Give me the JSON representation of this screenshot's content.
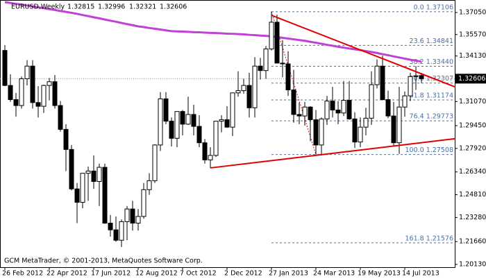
{
  "chart_data": {
    "type": "candlestick",
    "symbol": "EURUSD,Weekly",
    "footer": "GCM MetaTrader, © 2001-2013, MetaQuotes Software Corp.",
    "categories": [
      "26 Feb 2012",
      null,
      null,
      null,
      null,
      null,
      null,
      null,
      "22 Apr 2012",
      null,
      null,
      null,
      null,
      null,
      null,
      null,
      "17 Jun 2012",
      null,
      null,
      null,
      null,
      null,
      null,
      null,
      "12 Aug 2012",
      null,
      null,
      null,
      null,
      null,
      null,
      null,
      "7 Oct 2012",
      null,
      null,
      null,
      null,
      null,
      null,
      null,
      "2 Dec 2012",
      null,
      null,
      null,
      null,
      null,
      null,
      null,
      "27 Jan 2013",
      null,
      null,
      null,
      null,
      null,
      null,
      null,
      "24 Mar 2013",
      null,
      null,
      null,
      null,
      null,
      null,
      null,
      "19 May 2013",
      null,
      null,
      null,
      null,
      null,
      null,
      null,
      "14 Jul 2013",
      null,
      null,
      null
    ],
    "open": [
      1.345,
      1.3215,
      1.312,
      1.308,
      1.326,
      1.3345,
      1.31,
      1.3075,
      1.3215,
      1.324,
      1.308,
      1.292,
      1.2785,
      1.252,
      1.243,
      1.2625,
      1.264,
      1.257,
      1.2665,
      1.229,
      1.2245,
      1.2175,
      1.23,
      1.2385,
      1.229,
      1.2335,
      1.2515,
      1.2575,
      1.2815,
      1.3125,
      1.2975,
      1.286,
      1.304,
      1.2955,
      1.302,
      1.294,
      1.283,
      1.2715,
      1.2745,
      1.2975,
      1.2985,
      1.2935,
      1.3165,
      1.318,
      1.3215,
      1.3065,
      1.3345,
      1.3315,
      1.346,
      1.364,
      1.3365,
      1.336,
      1.3185,
      1.302,
      1.301,
      1.307,
      1.2985,
      1.2815,
      1.299,
      1.311,
      1.305,
      1.303,
      1.3115,
      1.299,
      1.2835,
      1.2935,
      1.2995,
      1.322,
      1.3345,
      1.312,
      1.301,
      1.283,
      1.307,
      1.3145,
      1.3275,
      1.32815
    ],
    "high": [
      1.3486,
      1.329,
      1.3165,
      1.3275,
      1.3385,
      1.3385,
      1.321,
      1.322,
      1.3265,
      1.3285,
      1.311,
      1.2955,
      1.2815,
      1.256,
      1.2625,
      1.267,
      1.2745,
      1.269,
      1.269,
      1.2345,
      1.2335,
      1.2315,
      1.2405,
      1.244,
      1.2385,
      1.256,
      1.2625,
      1.282,
      1.317,
      1.317,
      1.3,
      1.304,
      1.305,
      1.314,
      1.3085,
      1.3015,
      1.2855,
      1.28,
      1.2975,
      1.3015,
      1.3075,
      1.3165,
      1.331,
      1.326,
      1.33,
      1.3405,
      1.34,
      1.348,
      1.3711,
      1.369,
      1.352,
      1.3445,
      1.332,
      1.31,
      1.3105,
      1.3075,
      1.305,
      1.3,
      1.3145,
      1.3205,
      1.311,
      1.3245,
      1.3245,
      1.3035,
      1.3,
      1.3065,
      1.331,
      1.339,
      1.3415,
      1.318,
      1.3105,
      1.3205,
      1.3175,
      1.33,
      1.3345,
      1.32996
    ],
    "low": [
      1.321,
      1.3105,
      1.3005,
      1.306,
      1.3215,
      1.306,
      1.3,
      1.303,
      1.3115,
      1.306,
      1.2905,
      1.264,
      1.251,
      1.229,
      1.239,
      1.244,
      1.252,
      1.2405,
      1.2285,
      1.22,
      1.2165,
      1.213,
      1.2175,
      1.224,
      1.224,
      1.232,
      1.248,
      1.256,
      1.2775,
      1.2955,
      1.2805,
      1.28,
      1.288,
      1.295,
      1.288,
      1.28,
      1.269,
      1.266,
      1.2735,
      1.29,
      1.293,
      1.2875,
      1.314,
      1.316,
      1.3,
      1.3,
      1.3255,
      1.326,
      1.345,
      1.3375,
      1.327,
      1.3145,
      1.2965,
      1.2955,
      1.2945,
      1.284,
      1.2751,
      1.2745,
      1.295,
      1.3,
      1.2955,
      1.301,
      1.2985,
      1.2795,
      1.28,
      1.288,
      1.295,
      1.3195,
      1.3115,
      1.2995,
      1.2805,
      1.2755,
      1.3005,
      1.311,
      1.3185,
      1.32321
    ],
    "close": [
      1.3215,
      1.312,
      1.308,
      1.326,
      1.3345,
      1.31,
      1.3075,
      1.3215,
      1.324,
      1.308,
      1.292,
      1.2785,
      1.252,
      1.243,
      1.2625,
      1.264,
      1.257,
      1.2665,
      1.229,
      1.2245,
      1.2175,
      1.23,
      1.2385,
      1.229,
      1.2335,
      1.2515,
      1.2575,
      1.2815,
      1.3125,
      1.2975,
      1.286,
      1.304,
      1.2955,
      1.302,
      1.294,
      1.283,
      1.2715,
      1.2745,
      1.2975,
      1.2985,
      1.2935,
      1.3165,
      1.318,
      1.3215,
      1.3065,
      1.3345,
      1.3315,
      1.346,
      1.364,
      1.3365,
      1.336,
      1.3185,
      1.302,
      1.301,
      1.307,
      1.2985,
      1.2815,
      1.299,
      1.311,
      1.305,
      1.303,
      1.3115,
      1.299,
      1.2835,
      1.2935,
      1.2995,
      1.322,
      1.3345,
      1.312,
      1.301,
      1.283,
      1.307,
      1.3145,
      1.3275,
      1.328,
      1.32606
    ],
    "bull_color": "#ffffff",
    "bear_color": "#000000",
    "moving_average": {
      "color": "#c040d8",
      "values": [
        1.3775,
        1.3769,
        1.3763,
        1.3758,
        1.3752,
        1.3746,
        1.374,
        1.3734,
        1.3728,
        1.3722,
        1.3715,
        1.3709,
        1.3703,
        1.3696,
        1.3688,
        1.3681,
        1.3673,
        1.3666,
        1.3658,
        1.365,
        1.3643,
        1.3635,
        1.3627,
        1.362,
        1.3612,
        1.3607,
        1.3601,
        1.3596,
        1.3591,
        1.3585,
        1.358,
        1.3578,
        1.3577,
        1.3575,
        1.3573,
        1.3572,
        1.357,
        1.3568,
        1.3567,
        1.3565,
        1.3563,
        1.3562,
        1.356,
        1.3558,
        1.3555,
        1.3553,
        1.355,
        1.3548,
        1.3545,
        1.354,
        1.3535,
        1.353,
        1.3525,
        1.352,
        1.3515,
        1.3508,
        1.3502,
        1.3495,
        1.3488,
        1.3482,
        1.3475,
        1.3469,
        1.3463,
        1.3458,
        1.3452,
        1.3446,
        1.344,
        1.3433,
        1.3425,
        1.3418,
        1.341,
        1.3403,
        1.3395,
        1.3388,
        1.3382,
        1.3375
      ]
    },
    "trendlines": [
      {
        "color": "#e00000",
        "x": [
          48,
          81
        ],
        "y": [
          1.3686,
          1.3206
        ]
      },
      {
        "color": "#e00000",
        "x": [
          37,
          81
        ],
        "y": [
          1.2661,
          1.2857
        ]
      }
    ],
    "fibonacci": {
      "color": "#4a6fa5",
      "start": 48,
      "end": 56,
      "levels": [
        {
          "value": 1.37106,
          "label": "0.0 1.37106"
        },
        {
          "value": 1.34841,
          "label": "23.6 1.34841"
        },
        {
          "value": 1.3344,
          "label": "38.2 1.33440"
        },
        {
          "value": 1.32307,
          "label": "50.0 1.32307"
        },
        {
          "value": 1.31174,
          "label": "61.8 1.31174"
        },
        {
          "value": 1.29773,
          "label": "76.4 1.29773"
        },
        {
          "value": 1.27508,
          "label": "100.0 1.27508"
        },
        {
          "value": 1.21576,
          "label": "161.8 1.21576"
        }
      ]
    },
    "xlim": [
      -0.875,
      81
    ],
    "ylim": [
      1.1994,
      1.3789
    ],
    "yticks": [
      {
        "value": 1.3705,
        "label": "1.37050"
      },
      {
        "value": 1.3557,
        "label": "1.35570"
      },
      {
        "value": 1.3413,
        "label": "1.34130"
      },
      {
        "value": 1.3107,
        "label": "1.31070"
      },
      {
        "value": 1.2945,
        "label": "1.29450"
      },
      {
        "value": 1.2792,
        "label": "1.27920"
      },
      {
        "value": 1.2634,
        "label": "1.26340"
      },
      {
        "value": 1.2481,
        "label": "1.24810"
      },
      {
        "value": 1.2328,
        "label": "1.23280"
      },
      {
        "value": 1.2166,
        "label": "1.21660"
      },
      {
        "value": 1.2013,
        "label": "1.20130"
      }
    ]
  }
}
